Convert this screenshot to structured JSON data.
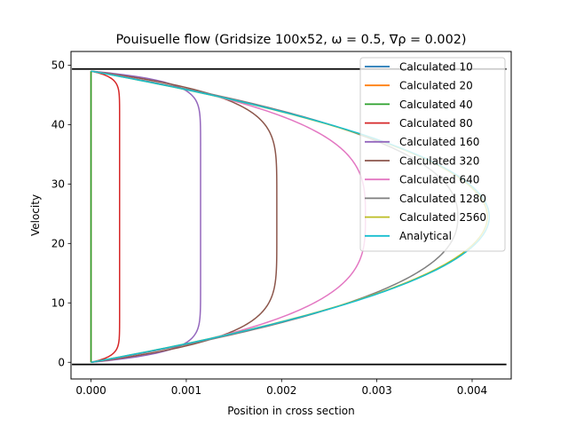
{
  "chart_data": {
    "type": "line",
    "title": "Pouisuelle flow (Gridsize 100x52, ω = 0.5, ∇ρ = 0.002)",
    "xlabel": "Position in cross section",
    "ylabel": "Velocity",
    "xlim": [
      -0.00021,
      0.00441
    ],
    "ylim": [
      -2.8,
      52.3
    ],
    "xticks": [
      0.0,
      0.001,
      0.002,
      0.003,
      0.004
    ],
    "xtick_labels": [
      "0.000",
      "0.001",
      "0.002",
      "0.003",
      "0.004"
    ],
    "yticks": [
      0,
      10,
      20,
      30,
      40,
      50
    ],
    "ytick_labels": [
      "0",
      "10",
      "20",
      "30",
      "40",
      "50"
    ],
    "grid": false,
    "legend_position": "top-right",
    "y_domain": [
      0,
      49
    ],
    "walls": {
      "y": [
        -0.35,
        49.35
      ],
      "x": [
        -0.0002,
        0.00436
      ],
      "color": "#000000"
    },
    "series": [
      {
        "name": "Calculated 10",
        "color": "#1f77b4",
        "peak": 0.0,
        "line_type": "vertical"
      },
      {
        "name": "Calculated 20",
        "color": "#ff7f0e",
        "peak": 0.0,
        "line_type": "vertical"
      },
      {
        "name": "Calculated 40",
        "color": "#2ca02c",
        "peak": 0.0,
        "line_type": "vertical"
      },
      {
        "name": "Calculated 80",
        "color": "#d62728",
        "peak": 0.0003,
        "line_type": "profile",
        "flatness": 12
      },
      {
        "name": "Calculated 160",
        "color": "#9467bd",
        "peak": 0.00115,
        "line_type": "profile",
        "flatness": 7
      },
      {
        "name": "Calculated 320",
        "color": "#8c564b",
        "peak": 0.00195,
        "line_type": "profile",
        "flatness": 3
      },
      {
        "name": "Calculated 640",
        "color": "#e377c2",
        "peak": 0.00288,
        "line_type": "profile",
        "flatness": 1.6
      },
      {
        "name": "Calculated 1280",
        "color": "#7f7f7f",
        "peak": 0.00385,
        "line_type": "profile",
        "flatness": 1.15
      },
      {
        "name": "Calculated 2560",
        "color": "#bcbd22",
        "peak": 0.00416,
        "line_type": "profile",
        "flatness": 1.0
      },
      {
        "name": "Analytical",
        "color": "#17becf",
        "peak": 0.00418,
        "line_type": "profile",
        "flatness": 1.0
      }
    ]
  }
}
